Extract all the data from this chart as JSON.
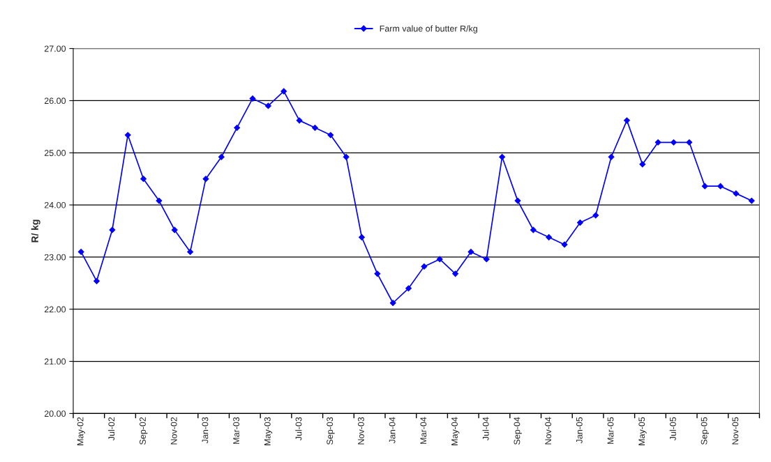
{
  "chart_data": {
    "type": "line",
    "ylabel": "R/ kg",
    "categories": [
      "May-02",
      null,
      "Jul-02",
      null,
      "Sep-02",
      null,
      "Nov-02",
      null,
      "Jan-03",
      null,
      "Mar-03",
      null,
      "May-03",
      null,
      "Jul-03",
      null,
      "Sep-03",
      null,
      "Nov-03",
      null,
      "Jan-04",
      null,
      "Mar-04",
      null,
      "May-04",
      null,
      "Jul-04",
      null,
      "Sep-04",
      null,
      "Nov-04",
      null,
      "Jan-05",
      null,
      "Mar-05",
      null,
      "May-05",
      null,
      "Jul-05",
      null,
      "Sep-05",
      null,
      "Nov-05",
      null
    ],
    "series": [
      {
        "name": "Farm value of butter R/kg",
        "color": "#0000ff",
        "values": [
          23.1,
          22.54,
          23.52,
          25.34,
          24.5,
          24.08,
          23.52,
          23.1,
          24.5,
          24.92,
          25.48,
          26.04,
          25.9,
          26.18,
          25.62,
          25.48,
          25.34,
          24.92,
          23.38,
          22.68,
          22.12,
          22.4,
          22.82,
          22.96,
          22.68,
          23.1,
          22.96,
          24.92,
          24.08,
          23.52,
          23.38,
          23.24,
          23.66,
          23.8,
          24.92,
          25.62,
          24.78,
          25.2,
          25.2,
          25.2,
          24.36,
          24.36,
          24.22,
          24.08
        ]
      }
    ],
    "ylim": [
      20,
      27
    ],
    "yticks": [
      {
        "value": 20,
        "label": "20.00"
      },
      {
        "value": 21,
        "label": "21.00"
      },
      {
        "value": 22,
        "label": "22.00"
      },
      {
        "value": 23,
        "label": "23.00"
      },
      {
        "value": 24,
        "label": "24.00"
      },
      {
        "value": 25,
        "label": "25.00"
      },
      {
        "value": 26,
        "label": "26.00"
      },
      {
        "value": 27,
        "label": "27.00"
      }
    ],
    "grid": "y",
    "legend": "top",
    "marker": "diamond",
    "line_style": "solid"
  }
}
